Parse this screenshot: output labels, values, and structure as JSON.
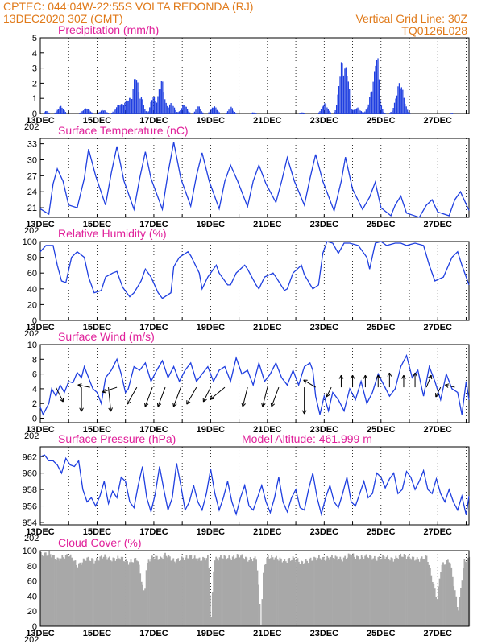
{
  "header": {
    "line1_left": "CPTEC:  044:04W-22:55S  VOLTA REDONDA (RJ)",
    "line2_left": "13DEC2020 30Z (GMT)",
    "line1_right": "Vertical Grid Line: 30Z",
    "line2_right": "TQ0126L028"
  },
  "colors": {
    "header": "#e07a1a",
    "title": "#e0209a",
    "series": "#1f3fe0",
    "cloud": "#a8a8a8",
    "arrow": "#000000"
  },
  "x_axis": {
    "labels": [
      "13DEC",
      "15DEC",
      "17DEC",
      "19DEC",
      "21DEC",
      "23DEC",
      "25DEC",
      "27DEC"
    ],
    "stub_label": "202"
  },
  "chart_data": [
    {
      "type": "bar",
      "title": "Precipitation (mm/h)",
      "ylim": [
        0,
        5
      ],
      "yticks": [
        0,
        1,
        2,
        3,
        4,
        5
      ],
      "xlim_days": [
        13,
        28.1
      ],
      "events": [
        {
          "day": 13.2,
          "amp": 0.2,
          "width": 0.06
        },
        {
          "day": 13.7,
          "amp": 0.5,
          "width": 0.1
        },
        {
          "day": 14.6,
          "amp": 0.35,
          "width": 0.12
        },
        {
          "day": 15.2,
          "amp": 0.25,
          "width": 0.1
        },
        {
          "day": 15.75,
          "amp": 0.55,
          "width": 0.12
        },
        {
          "day": 16.1,
          "amp": 1.0,
          "width": 0.15
        },
        {
          "day": 16.35,
          "amp": 2.4,
          "width": 0.08
        },
        {
          "day": 16.55,
          "amp": 1.0,
          "width": 0.08
        },
        {
          "day": 16.95,
          "amp": 1.2,
          "width": 0.08
        },
        {
          "day": 17.25,
          "amp": 2.3,
          "width": 0.1
        },
        {
          "day": 17.6,
          "amp": 0.7,
          "width": 0.1
        },
        {
          "day": 18.05,
          "amp": 0.6,
          "width": 0.1
        },
        {
          "day": 18.55,
          "amp": 0.5,
          "width": 0.08
        },
        {
          "day": 19.1,
          "amp": 0.5,
          "width": 0.1
        },
        {
          "day": 19.7,
          "amp": 0.45,
          "width": 0.08
        },
        {
          "day": 20.5,
          "amp": 0.08,
          "width": 0.08
        },
        {
          "day": 22.2,
          "amp": 0.08,
          "width": 0.1
        },
        {
          "day": 23.0,
          "amp": 0.7,
          "width": 0.1
        },
        {
          "day": 23.6,
          "amp": 3.4,
          "width": 0.1
        },
        {
          "day": 23.8,
          "amp": 2.4,
          "width": 0.08
        },
        {
          "day": 24.15,
          "amp": 0.4,
          "width": 0.1
        },
        {
          "day": 24.75,
          "amp": 2.2,
          "width": 0.14
        },
        {
          "day": 24.85,
          "amp": 2.4,
          "width": 0.06
        },
        {
          "day": 25.65,
          "amp": 2.1,
          "width": 0.13
        },
        {
          "day": 27.5,
          "amp": 0.05,
          "width": 0.1
        }
      ]
    },
    {
      "type": "line",
      "title": "Surface Temperature (nC)",
      "ylim": [
        19.2,
        34
      ],
      "yticks": [
        21,
        24,
        27,
        30,
        33
      ],
      "xlim_days": [
        13,
        28.1
      ],
      "x": [
        13.0,
        13.3,
        13.45,
        13.6,
        13.8,
        14.0,
        14.3,
        14.55,
        14.7,
        14.95,
        15.3,
        15.5,
        15.7,
        15.95,
        16.3,
        16.5,
        16.7,
        16.9,
        17.3,
        17.5,
        17.7,
        17.95,
        18.3,
        18.5,
        18.7,
        18.95,
        19.3,
        19.5,
        19.7,
        19.95,
        20.3,
        20.5,
        20.7,
        20.95,
        21.3,
        21.5,
        21.7,
        21.95,
        22.3,
        22.5,
        22.7,
        22.95,
        23.35,
        23.6,
        23.75,
        24.0,
        24.35,
        24.6,
        24.8,
        25.0,
        25.35,
        25.5,
        25.7,
        25.9,
        26.35,
        26.6,
        26.8,
        27.0,
        27.4,
        27.6,
        27.8,
        28.1
      ],
      "y": [
        20.8,
        19.8,
        25.5,
        28.3,
        26.0,
        21.5,
        21.0,
        26.5,
        32.0,
        27.0,
        21.5,
        27.5,
        32.5,
        26.0,
        20.7,
        26.5,
        31.5,
        26.5,
        20.7,
        27.5,
        33.3,
        26.5,
        21.3,
        27.0,
        31.3,
        26.0,
        20.8,
        26.0,
        29.0,
        26.0,
        21.2,
        26.0,
        29.0,
        25.5,
        22.0,
        26.0,
        30.4,
        26.0,
        21.5,
        26.5,
        31.0,
        26.0,
        20.4,
        26.0,
        30.5,
        24.5,
        20.7,
        23.0,
        25.8,
        21.0,
        19.5,
        21.5,
        23.2,
        20.0,
        19.2,
        21.5,
        22.5,
        20.2,
        19.5,
        22.5,
        24.0,
        20.5
      ]
    },
    {
      "type": "line",
      "title": "Relative Humidity (%)",
      "ylim": [
        0,
        100
      ],
      "yticks": [
        0,
        20,
        40,
        60,
        80,
        100
      ],
      "xlim_days": [
        13,
        28.1
      ],
      "x": [
        13.0,
        13.2,
        13.45,
        13.6,
        13.75,
        13.9,
        14.1,
        14.3,
        14.55,
        14.7,
        14.9,
        15.15,
        15.3,
        15.55,
        15.7,
        15.9,
        16.15,
        16.3,
        16.55,
        16.7,
        16.9,
        17.15,
        17.3,
        17.6,
        17.7,
        17.9,
        18.2,
        18.3,
        18.6,
        18.7,
        18.9,
        19.2,
        19.3,
        19.6,
        19.7,
        19.9,
        20.2,
        20.3,
        20.6,
        20.7,
        20.9,
        21.2,
        21.3,
        21.6,
        21.7,
        21.9,
        22.2,
        22.3,
        22.6,
        22.8,
        22.95,
        23.1,
        23.3,
        23.5,
        23.7,
        23.9,
        24.2,
        24.5,
        24.6,
        24.8,
        25.0,
        25.2,
        25.5,
        25.7,
        25.9,
        26.2,
        26.5,
        26.7,
        26.9,
        27.2,
        27.5,
        27.7,
        27.85,
        28.1
      ],
      "y": [
        87,
        95,
        95,
        70,
        50,
        48,
        80,
        87,
        80,
        55,
        35,
        38,
        55,
        60,
        62,
        42,
        30,
        35,
        50,
        65,
        55,
        35,
        28,
        35,
        68,
        80,
        87,
        82,
        60,
        40,
        55,
        70,
        60,
        45,
        45,
        60,
        70,
        65,
        45,
        40,
        55,
        60,
        55,
        38,
        40,
        60,
        70,
        58,
        40,
        45,
        85,
        100,
        98,
        85,
        98,
        98,
        95,
        80,
        65,
        98,
        100,
        95,
        98,
        98,
        95,
        98,
        95,
        70,
        50,
        55,
        80,
        87,
        70,
        45
      ]
    },
    {
      "type": "line",
      "title": "Surface Wind (m/s)",
      "ylim": [
        -0.6,
        10
      ],
      "yticks": [
        0,
        2,
        4,
        6,
        8,
        10
      ],
      "xlim_days": [
        13,
        28.1
      ],
      "x": [
        13.0,
        13.1,
        13.3,
        13.4,
        13.55,
        13.7,
        13.85,
        14.0,
        14.15,
        14.3,
        14.45,
        14.55,
        14.7,
        14.85,
        15.0,
        15.15,
        15.3,
        15.5,
        15.7,
        15.85,
        16.0,
        16.1,
        16.3,
        16.5,
        16.7,
        16.9,
        17.1,
        17.3,
        17.5,
        17.7,
        17.9,
        18.1,
        18.3,
        18.5,
        18.7,
        18.9,
        19.1,
        19.3,
        19.5,
        19.7,
        19.9,
        20.1,
        20.3,
        20.5,
        20.7,
        20.9,
        21.1,
        21.3,
        21.5,
        21.7,
        21.9,
        22.1,
        22.3,
        22.5,
        22.6,
        22.7,
        22.85,
        23.0,
        23.15,
        23.3,
        23.5,
        23.7,
        23.9,
        24.1,
        24.3,
        24.5,
        24.7,
        24.9,
        25.1,
        25.3,
        25.5,
        25.7,
        25.9,
        26.1,
        26.3,
        26.5,
        26.7,
        26.9,
        27.1,
        27.3,
        27.5,
        27.7,
        27.85,
        28.0,
        28.1
      ],
      "y": [
        1.5,
        0.5,
        2.0,
        4.0,
        3.0,
        4.5,
        3.5,
        5.0,
        4.8,
        6.2,
        5.5,
        7.0,
        5.5,
        4.0,
        3.5,
        2.0,
        5.5,
        6.5,
        8.0,
        6.0,
        3.5,
        4.0,
        7.0,
        6.5,
        7.5,
        5.0,
        6.5,
        7.8,
        5.5,
        7.0,
        5.0,
        6.5,
        7.5,
        5.0,
        6.0,
        7.0,
        5.0,
        6.5,
        7.0,
        5.0,
        8.2,
        6.0,
        6.5,
        4.5,
        7.5,
        5.0,
        6.0,
        7.5,
        5.5,
        4.5,
        6.5,
        4.5,
        7.0,
        7.5,
        6.5,
        3.0,
        0.5,
        3.0,
        1.0,
        3.5,
        2.5,
        1.0,
        4.0,
        2.5,
        5.0,
        2.0,
        3.5,
        6.0,
        4.5,
        3.0,
        4.0,
        7.0,
        8.5,
        5.5,
        6.5,
        3.0,
        7.0,
        5.0,
        2.5,
        6.0,
        4.0,
        3.5,
        0.5,
        5.0,
        2.5
      ],
      "arrows": [
        {
          "day": 13.55,
          "dx": 0.3,
          "dy": -0.6
        },
        {
          "day": 14.45,
          "dx": 0.0,
          "dy": -1.0
        },
        {
          "day": 14.75,
          "dx": -0.5,
          "dy": 0.1
        },
        {
          "day": 15.4,
          "dx": 0.1,
          "dy": -1.0
        },
        {
          "day": 15.7,
          "dx": -0.6,
          "dy": -0.2
        },
        {
          "day": 16.4,
          "dx": -0.4,
          "dy": -0.7
        },
        {
          "day": 16.95,
          "dx": -0.3,
          "dy": -0.8
        },
        {
          "day": 17.4,
          "dx": -0.3,
          "dy": -0.8
        },
        {
          "day": 17.95,
          "dx": -0.3,
          "dy": -0.8
        },
        {
          "day": 18.5,
          "dx": -0.4,
          "dy": -0.7
        },
        {
          "day": 19.0,
          "dx": -0.3,
          "dy": -0.6
        },
        {
          "day": 19.5,
          "dx": -0.6,
          "dy": -0.5
        },
        {
          "day": 20.3,
          "dx": -0.2,
          "dy": -0.8
        },
        {
          "day": 21.0,
          "dx": -0.2,
          "dy": -0.8
        },
        {
          "day": 21.4,
          "dx": -0.3,
          "dy": -0.8
        },
        {
          "day": 22.3,
          "dx": 0.0,
          "dy": -1.1
        },
        {
          "day": 22.7,
          "dx": -0.5,
          "dy": 0.3
        },
        {
          "day": 23.25,
          "dx": -0.2,
          "dy": -0.4
        },
        {
          "day": 23.6,
          "dx": 0.0,
          "dy": 0.5
        },
        {
          "day": 24.0,
          "dx": 0.0,
          "dy": 0.5
        },
        {
          "day": 24.45,
          "dx": 0.0,
          "dy": 0.5
        },
        {
          "day": 24.9,
          "dx": 0.0,
          "dy": 0.5
        },
        {
          "day": 25.3,
          "dx": 0.0,
          "dy": 0.6
        },
        {
          "day": 25.8,
          "dx": 0.0,
          "dy": 0.5
        },
        {
          "day": 26.2,
          "dx": 0.0,
          "dy": 0.6
        },
        {
          "day": 26.6,
          "dx": 0.2,
          "dy": 0.5
        },
        {
          "day": 27.1,
          "dx": -0.2,
          "dy": -0.4
        },
        {
          "day": 27.6,
          "dx": -0.4,
          "dy": 0.1
        }
      ]
    },
    {
      "type": "line",
      "title": "Surface Pressure (hPa)",
      "title_extra": "Model Altitude: 461.999 m",
      "ylim": [
        953.7,
        963.2
      ],
      "yticks": [
        954,
        956,
        958,
        960,
        962
      ],
      "xlim_days": [
        13,
        28.1
      ],
      "x": [
        13.0,
        13.15,
        13.3,
        13.45,
        13.6,
        13.75,
        13.9,
        14.05,
        14.2,
        14.35,
        14.5,
        14.65,
        14.8,
        14.95,
        15.1,
        15.25,
        15.4,
        15.55,
        15.7,
        15.85,
        16.0,
        16.15,
        16.3,
        16.45,
        16.6,
        16.75,
        16.9,
        17.05,
        17.2,
        17.35,
        17.5,
        17.65,
        17.8,
        17.95,
        18.1,
        18.25,
        18.4,
        18.55,
        18.7,
        18.85,
        19.0,
        19.15,
        19.3,
        19.45,
        19.6,
        19.75,
        19.9,
        20.05,
        20.2,
        20.35,
        20.5,
        20.65,
        20.8,
        20.95,
        21.1,
        21.25,
        21.4,
        21.55,
        21.7,
        21.85,
        22.0,
        22.15,
        22.3,
        22.45,
        22.6,
        22.75,
        22.9,
        23.05,
        23.2,
        23.35,
        23.5,
        23.65,
        23.8,
        23.95,
        24.1,
        24.25,
        24.4,
        24.55,
        24.7,
        24.85,
        25.0,
        25.15,
        25.3,
        25.45,
        25.6,
        25.75,
        25.9,
        26.05,
        26.2,
        26.35,
        26.5,
        26.65,
        26.8,
        26.95,
        27.1,
        27.25,
        27.4,
        27.55,
        27.7,
        27.85,
        28.0,
        28.1
      ],
      "y": [
        962.0,
        962.2,
        961.5,
        961.5,
        961.0,
        960.0,
        961.8,
        961.0,
        960.8,
        961.5,
        958.0,
        956.5,
        957.0,
        956.0,
        957.2,
        959.0,
        956.3,
        957.8,
        957.0,
        959.5,
        959.0,
        956.5,
        955.8,
        958.5,
        960.8,
        957.0,
        955.3,
        957.5,
        960.8,
        958.0,
        955.5,
        957.0,
        961.2,
        958.5,
        955.5,
        956.5,
        958.5,
        956.5,
        955.5,
        957.5,
        960.5,
        957.5,
        955.5,
        957.0,
        959.0,
        956.5,
        955.0,
        957.0,
        958.5,
        956.0,
        955.5,
        957.0,
        958.5,
        956.5,
        955.2,
        957.0,
        959.5,
        956.5,
        955.3,
        957.0,
        958.0,
        955.8,
        955.5,
        958.0,
        960.0,
        957.0,
        955.0,
        957.0,
        958.5,
        956.5,
        955.8,
        957.5,
        959.5,
        956.5,
        956.0,
        957.5,
        959.0,
        957.0,
        957.5,
        960.0,
        959.5,
        958.2,
        959.3,
        960.0,
        957.5,
        958.0,
        960.2,
        959.5,
        958.0,
        959.0,
        960.3,
        958.0,
        957.5,
        959.3,
        957.5,
        956.5,
        958.0,
        956.5,
        955.5,
        957.2,
        954.9,
        957.2
      ]
    },
    {
      "type": "area",
      "title": "Cloud Cover (%)",
      "ylim": [
        0,
        100
      ],
      "yticks": [
        0,
        20,
        40,
        60,
        80,
        100
      ],
      "xlim_days": [
        13,
        28.1
      ],
      "x": [
        13.0,
        13.3,
        13.6,
        13.8,
        14.0,
        14.3,
        14.6,
        14.9,
        15.2,
        15.5,
        15.8,
        16.1,
        16.4,
        16.65,
        16.7,
        16.8,
        17.0,
        17.2,
        17.4,
        17.7,
        18.0,
        18.3,
        18.6,
        18.9,
        19.0,
        19.1,
        19.4,
        19.7,
        20.0,
        20.3,
        20.6,
        20.75,
        20.85,
        21.0,
        21.3,
        21.6,
        21.9,
        22.2,
        22.5,
        22.8,
        23.0,
        23.3,
        23.6,
        23.9,
        24.2,
        24.5,
        24.8,
        25.1,
        25.4,
        25.7,
        26.0,
        26.3,
        26.6,
        26.8,
        26.95,
        27.1,
        27.4,
        27.7,
        27.9,
        28.1
      ],
      "y": [
        95,
        96,
        88,
        92,
        94,
        80,
        90,
        86,
        93,
        88,
        91,
        84,
        90,
        40,
        75,
        88,
        92,
        89,
        95,
        86,
        90,
        92,
        88,
        91,
        10,
        88,
        92,
        90,
        94,
        88,
        90,
        5,
        80,
        92,
        90,
        86,
        90,
        84,
        88,
        91,
        89,
        92,
        88,
        95,
        90,
        93,
        89,
        92,
        88,
        94,
        91,
        88,
        92,
        60,
        35,
        80,
        88,
        20,
        85,
        90
      ]
    }
  ]
}
